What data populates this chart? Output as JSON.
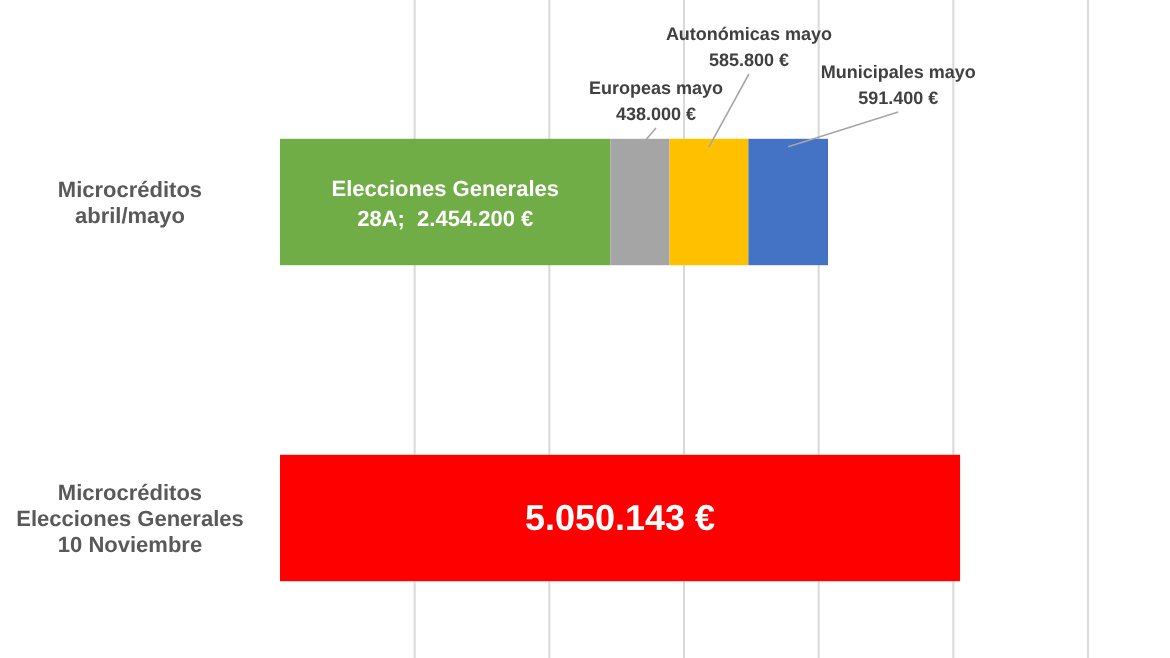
{
  "chart_data": {
    "type": "bar",
    "orientation": "horizontal",
    "stacked": true,
    "categories": [
      "Microcréditos abril/mayo",
      "Microcréditos Elecciones Generales 10 Noviembre"
    ],
    "series": [
      {
        "colors": [
          "#70ad47",
          "#ff0000"
        ],
        "values": [
          2454200,
          5050143
        ],
        "value_labels": [
          "Elecciones Generales 28A;  2.454.200 €",
          "5.050.143 €"
        ]
      },
      {
        "color": "#a5a5a5",
        "values": [
          438000,
          null
        ],
        "value_labels": [
          "Europeas mayo 438.000 €",
          null
        ]
      },
      {
        "color": "#ffc000",
        "values": [
          585800,
          null
        ],
        "value_labels": [
          "Autonómicas mayo 585.800 €",
          null
        ]
      },
      {
        "color": "#4472c4",
        "values": [
          591400,
          null
        ],
        "value_labels": [
          "Municipales mayo 591.400 €",
          null
        ]
      }
    ],
    "xlim": [
      0,
      6000000
    ],
    "xticks": [
      {
        "value": 1000000,
        "label": null
      },
      {
        "value": 2000000,
        "label": null
      },
      {
        "value": 3000000,
        "label": null
      },
      {
        "value": 4000000,
        "label": null
      },
      {
        "value": 5000000,
        "label": null
      },
      {
        "value": 6000000,
        "label": null
      }
    ],
    "grid": "x"
  }
}
